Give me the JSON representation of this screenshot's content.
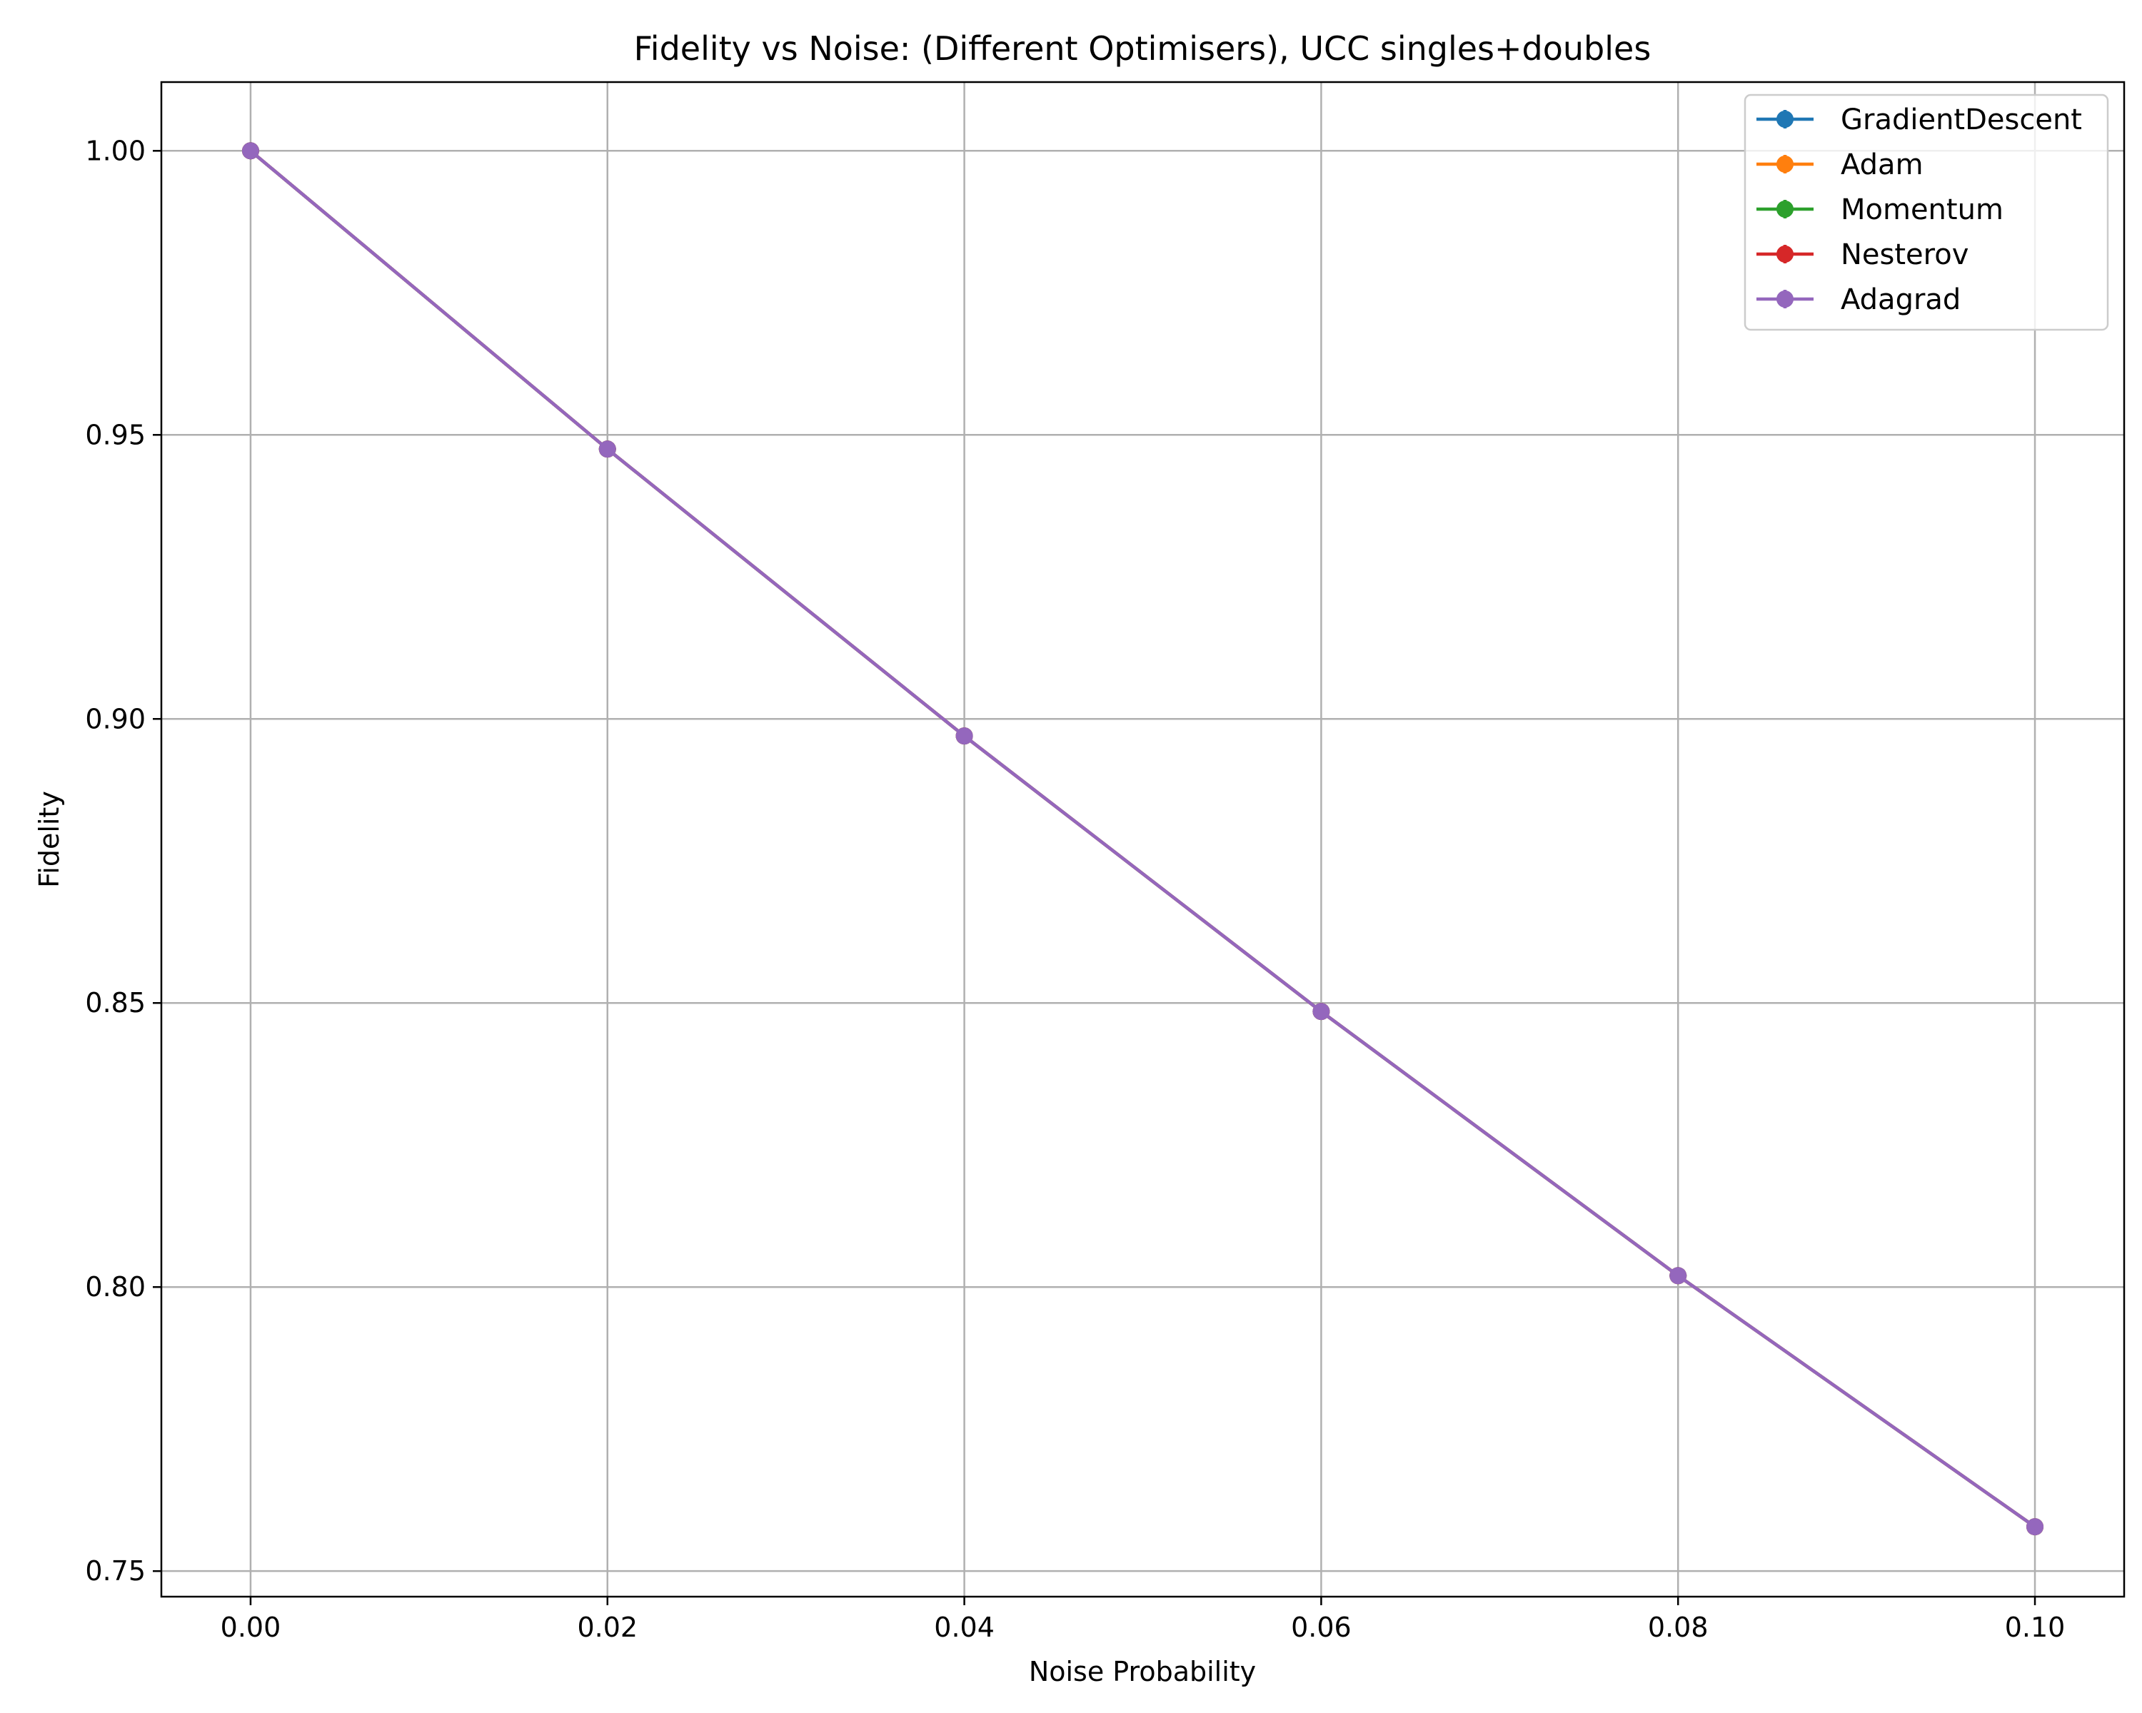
{
  "chart_data": {
    "type": "line",
    "title": "Fidelity vs Noise: (Different Optimisers), UCC singles+doubles",
    "xlabel": "Noise Probability",
    "ylabel": "Fidelity",
    "xlim": [
      -0.005,
      0.105
    ],
    "ylim": [
      0.7455,
      1.0121
    ],
    "xticks": [
      0.0,
      0.02,
      0.04,
      0.06,
      0.08,
      0.1
    ],
    "xtick_labels": [
      "0.00",
      "0.02",
      "0.04",
      "0.06",
      "0.08",
      "0.10"
    ],
    "yticks": [
      0.75,
      0.8,
      0.85,
      0.9,
      0.95,
      1.0
    ],
    "ytick_labels": [
      "0.75",
      "0.80",
      "0.85",
      "0.90",
      "0.95",
      "1.00"
    ],
    "grid": true,
    "legend_position": "top-right",
    "x": [
      0.0,
      0.02,
      0.04,
      0.06,
      0.08,
      0.1
    ],
    "series": [
      {
        "name": "GradientDescent",
        "color": "#1f77b4",
        "values": [
          1.0,
          0.9475,
          0.897,
          0.8485,
          0.802,
          0.7578
        ]
      },
      {
        "name": "Adam",
        "color": "#ff7f0e",
        "values": [
          1.0,
          0.9475,
          0.897,
          0.8485,
          0.802,
          0.7578
        ]
      },
      {
        "name": "Momentum",
        "color": "#2ca02c",
        "values": [
          1.0,
          0.9475,
          0.897,
          0.8485,
          0.802,
          0.7578
        ]
      },
      {
        "name": "Nesterov",
        "color": "#d62728",
        "values": [
          1.0,
          0.9475,
          0.897,
          0.8485,
          0.802,
          0.7578
        ]
      },
      {
        "name": "Adagrad",
        "color": "#9467bd",
        "values": [
          1.0,
          0.9475,
          0.897,
          0.8485,
          0.802,
          0.7578
        ]
      }
    ]
  }
}
